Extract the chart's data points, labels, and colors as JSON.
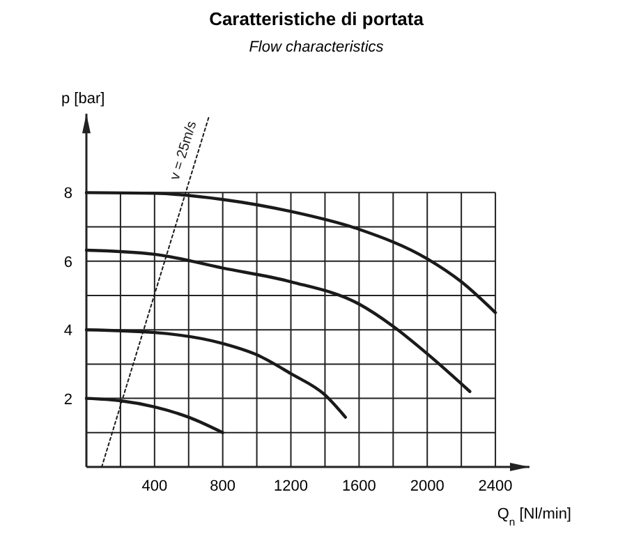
{
  "chart_data": {
    "type": "line",
    "title": "Caratteristiche di portata",
    "subtitle": "Flow characteristics",
    "xlabel": "Q$_{n}$ [Nl/min]",
    "ylabel": "p [bar]",
    "xlim": [
      0,
      2600
    ],
    "ylim": [
      0,
      10.3
    ],
    "xticks": [
      {
        "value": 0,
        "label": null
      },
      {
        "value": 200,
        "label": null
      },
      400,
      {
        "value": 600,
        "label": null
      },
      800,
      {
        "value": 1000,
        "label": null
      },
      1200,
      {
        "value": 1400,
        "label": null
      },
      1600,
      {
        "value": 1800,
        "label": null
      },
      2000,
      {
        "value": 2200,
        "label": null
      },
      2400
    ],
    "yticks": [
      {
        "value": 0,
        "label": null
      },
      {
        "value": 1,
        "label": null
      },
      2,
      {
        "value": 3,
        "label": null
      },
      4,
      {
        "value": 5,
        "label": null
      },
      6,
      {
        "value": 7,
        "label": null
      },
      8
    ],
    "grid": true,
    "marker": "none",
    "line_style": "solid",
    "series": [
      {
        "color": "#1a1a1a",
        "x": [
          0,
          400,
          800,
          1200,
          1600,
          2000,
          2200,
          2400
        ],
        "values": [
          8,
          7.98,
          7.8,
          7.45,
          6.93,
          6.07,
          5.4,
          4.5
        ]
      },
      {
        "color": "#1a1a1a",
        "x": [
          0,
          400,
          800,
          1200,
          1600,
          1800,
          2000,
          2250
        ],
        "values": [
          6.32,
          6.2,
          5.8,
          5.4,
          4.75,
          4.1,
          3.3,
          2.2
        ]
      },
      {
        "color": "#1a1a1a",
        "x": [
          0,
          400,
          800,
          1000,
          1200,
          1400,
          1520
        ],
        "values": [
          4,
          3.92,
          3.6,
          3.27,
          2.72,
          2.1,
          1.45
        ]
      },
      {
        "color": "#1a1a1a",
        "x": [
          0,
          200,
          400,
          600,
          800
        ],
        "values": [
          2,
          1.93,
          1.75,
          1.45,
          1
        ]
      },
      {
        "name": "v = 25m/s",
        "color": "#1a1a1a",
        "line_style": "dotted",
        "x": [
          90,
          718
        ],
        "values": [
          0,
          10.2
        ]
      }
    ]
  }
}
